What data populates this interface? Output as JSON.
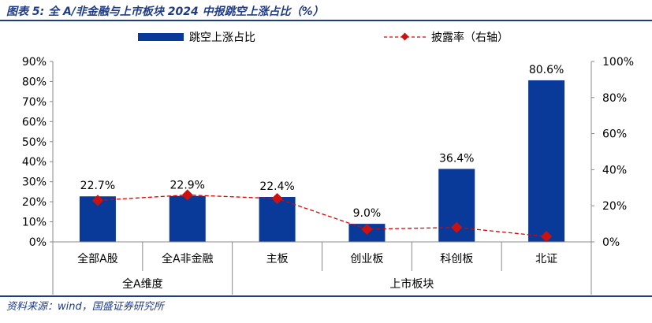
{
  "figure": {
    "title": "图表 5:  全 A/非金融与上市板块 2024 中报跳空上涨占比（%）",
    "source": "资料来源：wind，国盛证券研究所"
  },
  "colors": {
    "bar": "#0a3a99",
    "line": "#e00000",
    "marker": "#cc1111",
    "accent": "#1f3c88"
  },
  "chart_data": {
    "type": "bar",
    "categories": [
      "全部A股",
      "全A非金融",
      "主板",
      "创业板",
      "科创板",
      "北证"
    ],
    "groups": [
      {
        "label": "全A维度",
        "span": 2
      },
      {
        "label": "上市板块",
        "span": 4
      }
    ],
    "series": [
      {
        "name": "跳空上涨占比",
        "type": "bar",
        "axis": "left",
        "values": [
          22.7,
          22.9,
          22.4,
          9.0,
          36.4,
          80.6
        ],
        "labels": [
          "22.7%",
          "22.9%",
          "22.4%",
          "9.0%",
          "36.4%",
          "80.6%"
        ]
      },
      {
        "name": "披露率（右轴）",
        "type": "line",
        "axis": "right",
        "values": [
          23,
          26,
          24,
          7,
          8,
          3
        ]
      }
    ],
    "ylim_left": [
      0,
      90
    ],
    "ylim_right": [
      0,
      100
    ],
    "yticks_left": [
      "0%",
      "10%",
      "20%",
      "30%",
      "40%",
      "50%",
      "60%",
      "70%",
      "80%",
      "90%"
    ],
    "yticks_right": [
      "0%",
      "20%",
      "40%",
      "60%",
      "80%",
      "100%"
    ],
    "legend_position": "top",
    "grid": false
  }
}
